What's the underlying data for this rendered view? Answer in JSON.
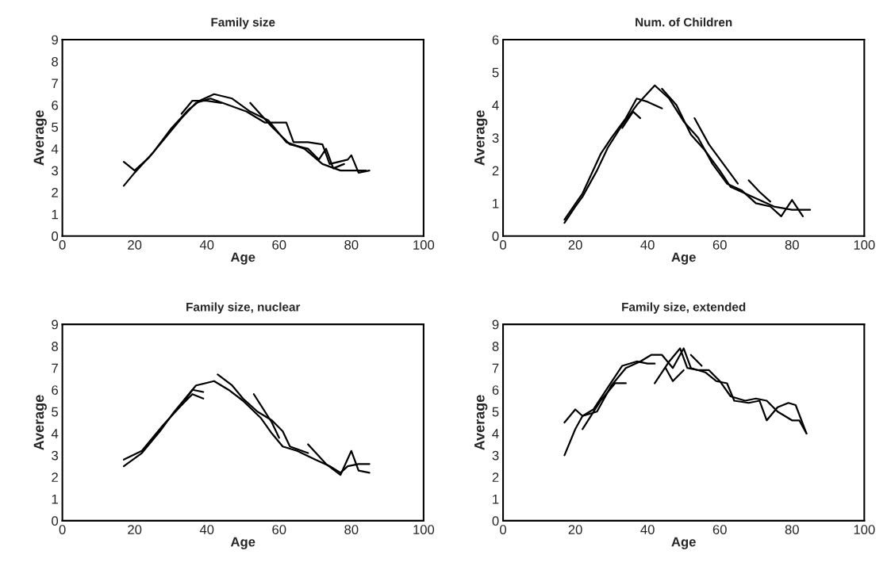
{
  "chart_data": [
    {
      "type": "line",
      "title": "Family size",
      "xlabel": "Age",
      "ylabel": "Average",
      "xlim": [
        0,
        100
      ],
      "xticks": [
        0,
        20,
        40,
        60,
        80,
        100
      ],
      "ylim": [
        0,
        9
      ],
      "yticks": [
        0,
        1,
        2,
        3,
        4,
        5,
        6,
        7,
        8,
        9
      ],
      "series": [
        {
          "color": "#000000",
          "x": [
            17,
            20,
            25,
            30,
            35,
            38,
            42,
            47,
            52,
            57,
            62,
            67,
            72,
            77,
            82,
            84
          ],
          "values": [
            2.3,
            2.9,
            3.8,
            4.9,
            5.8,
            6.2,
            6.5,
            6.3,
            5.7,
            5.3,
            4.3,
            4.0,
            3.3,
            3.0,
            3.0,
            3.0
          ]
        },
        {
          "color": "#000000",
          "x": [
            17,
            20,
            24,
            29,
            33,
            37,
            41,
            46,
            51,
            56,
            62,
            64,
            68,
            72,
            74,
            79,
            80,
            82,
            85
          ],
          "values": [
            3.4,
            3.0,
            3.6,
            4.6,
            5.4,
            6.1,
            6.3,
            6.0,
            5.7,
            5.2,
            5.2,
            4.3,
            4.3,
            4.2,
            3.3,
            3.5,
            3.7,
            2.9,
            3.0
          ]
        },
        {
          "color": "#000000",
          "x": [
            33,
            36,
            40,
            44
          ],
          "values": [
            5.6,
            6.2,
            6.2,
            6.1
          ]
        },
        {
          "color": "#000000",
          "x": [
            52,
            58,
            63,
            68,
            71,
            73,
            75,
            78
          ],
          "values": [
            6.1,
            5.0,
            4.2,
            4.0,
            3.5,
            4.0,
            3.1,
            3.3
          ]
        }
      ]
    },
    {
      "type": "line",
      "title": "Num. of Children",
      "xlabel": "Age",
      "ylabel": "Average",
      "xlim": [
        0,
        100
      ],
      "xticks": [
        0,
        20,
        40,
        60,
        80,
        100
      ],
      "ylim": [
        0,
        6
      ],
      "yticks": [
        0,
        1,
        2,
        3,
        4,
        5,
        6
      ],
      "series": [
        {
          "color": "#000000",
          "x": [
            17,
            20,
            22,
            26,
            29,
            33,
            37,
            42,
            46,
            50,
            54,
            58,
            62,
            66,
            70,
            74,
            77,
            80,
            83
          ],
          "values": [
            0.4,
            0.9,
            1.2,
            2.0,
            2.7,
            3.4,
            4.0,
            4.6,
            4.2,
            3.5,
            3.0,
            2.2,
            1.6,
            1.4,
            1.0,
            0.9,
            0.6,
            1.1,
            0.6
          ]
        },
        {
          "color": "#000000",
          "x": [
            17,
            22,
            27,
            30,
            34,
            37,
            40,
            44
          ],
          "values": [
            0.5,
            1.3,
            2.5,
            3.0,
            3.6,
            4.2,
            4.1,
            3.9
          ]
        },
        {
          "color": "#000000",
          "x": [
            44,
            48,
            52,
            56,
            60,
            63,
            67,
            71,
            75,
            80,
            85
          ],
          "values": [
            4.5,
            4.0,
            3.1,
            2.6,
            2.0,
            1.5,
            1.3,
            1.1,
            0.9,
            0.8,
            0.8
          ]
        },
        {
          "color": "#000000",
          "x": [
            33,
            36,
            38
          ],
          "values": [
            3.3,
            3.8,
            3.6
          ]
        },
        {
          "color": "#000000",
          "x": [
            53,
            57,
            61,
            65
          ],
          "values": [
            3.6,
            2.8,
            2.2,
            1.6
          ]
        },
        {
          "color": "#000000",
          "x": [
            68,
            71,
            74
          ],
          "values": [
            1.7,
            1.35,
            1.05
          ]
        }
      ]
    },
    {
      "type": "line",
      "title": "Family size, nuclear",
      "xlabel": "Age",
      "ylabel": "Average",
      "xlim": [
        0,
        100
      ],
      "xticks": [
        0,
        20,
        40,
        60,
        80,
        100
      ],
      "ylim": [
        0,
        9
      ],
      "yticks": [
        0,
        1,
        2,
        3,
        4,
        5,
        6,
        7,
        8,
        9
      ],
      "series": [
        {
          "color": "#000000",
          "x": [
            17,
            22,
            27,
            31,
            35,
            37,
            42,
            46,
            50,
            55,
            58,
            61,
            65,
            70,
            74,
            77,
            79,
            82,
            85
          ],
          "values": [
            2.5,
            3.1,
            4.1,
            5.0,
            5.8,
            6.2,
            6.4,
            6.0,
            5.5,
            4.7,
            4.0,
            3.4,
            3.2,
            2.8,
            2.5,
            2.2,
            2.5,
            2.6,
            2.6
          ]
        },
        {
          "color": "#000000",
          "x": [
            17,
            22,
            28,
            33,
            36,
            39
          ],
          "values": [
            2.8,
            3.2,
            4.4,
            5.3,
            6.0,
            5.9
          ]
        },
        {
          "color": "#000000",
          "x": [
            43,
            47,
            50,
            54,
            58,
            61,
            63,
            68
          ],
          "values": [
            6.7,
            6.2,
            5.6,
            5.0,
            4.6,
            4.1,
            3.4,
            3.1
          ]
        },
        {
          "color": "#000000",
          "x": [
            68,
            73,
            77,
            80,
            82,
            85
          ],
          "values": [
            3.5,
            2.6,
            2.1,
            3.2,
            2.3,
            2.2
          ]
        },
        {
          "color": "#000000",
          "x": [
            33,
            36,
            39
          ],
          "values": [
            5.3,
            5.8,
            5.6
          ]
        },
        {
          "color": "#000000",
          "x": [
            53,
            58,
            60
          ],
          "values": [
            5.8,
            4.5,
            3.8
          ]
        }
      ]
    },
    {
      "type": "line",
      "title": "Family size, extended",
      "xlabel": "Age",
      "ylabel": "Average",
      "xlim": [
        0,
        100
      ],
      "xticks": [
        0,
        20,
        40,
        60,
        80,
        100
      ],
      "ylim": [
        0,
        9
      ],
      "yticks": [
        0,
        1,
        2,
        3,
        4,
        5,
        6,
        7,
        8,
        9
      ],
      "series": [
        {
          "color": "#000000",
          "x": [
            17,
            20,
            22,
            26,
            30,
            34,
            38,
            41,
            44,
            47,
            50,
            52,
            56,
            59,
            62,
            64,
            68,
            71,
            73,
            76,
            79,
            81,
            84
          ],
          "values": [
            3.0,
            4.2,
            4.8,
            5.0,
            6.2,
            7.0,
            7.3,
            7.6,
            7.6,
            7.0,
            7.9,
            7.0,
            6.8,
            6.4,
            6.3,
            5.5,
            5.4,
            5.5,
            4.6,
            5.2,
            5.4,
            5.3,
            4.0
          ]
        },
        {
          "color": "#000000",
          "x": [
            17,
            20,
            22,
            25,
            29,
            33,
            37,
            40,
            42
          ],
          "values": [
            4.5,
            5.1,
            4.8,
            5.1,
            6.1,
            7.1,
            7.3,
            7.2,
            7.2
          ]
        },
        {
          "color": "#000000",
          "x": [
            42,
            46,
            49,
            51,
            54,
            57,
            60,
            63,
            67,
            70,
            73,
            76,
            80,
            82,
            84
          ],
          "values": [
            6.3,
            7.3,
            7.9,
            7.0,
            6.9,
            6.9,
            6.4,
            5.7,
            5.5,
            5.6,
            5.5,
            5.0,
            4.6,
            4.6,
            4.0
          ]
        },
        {
          "color": "#000000",
          "x": [
            22,
            27,
            31,
            34
          ],
          "values": [
            4.2,
            5.5,
            6.3,
            6.3
          ]
        },
        {
          "color": "#000000",
          "x": [
            45,
            47,
            50
          ],
          "values": [
            7.0,
            6.4,
            6.9
          ]
        },
        {
          "color": "#000000",
          "x": [
            52,
            55
          ],
          "values": [
            7.6,
            7.1
          ]
        }
      ]
    }
  ]
}
